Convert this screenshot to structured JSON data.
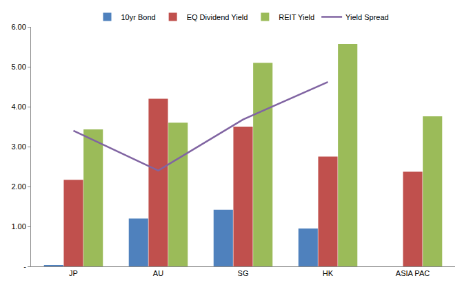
{
  "chart_data": {
    "type": "bar",
    "categories": [
      "JP",
      "AU",
      "SG",
      "HK",
      "ASIA PAC"
    ],
    "series": [
      {
        "name": "10yr Bond",
        "color": "#4F81BD",
        "values": [
          0.03,
          1.2,
          1.42,
          0.95,
          null
        ]
      },
      {
        "name": "EQ Dividend Yield",
        "color": "#C0504D",
        "values": [
          2.17,
          4.2,
          3.5,
          2.75,
          2.37
        ]
      },
      {
        "name": "REIT Yield",
        "color": "#9BBB59",
        "values": [
          3.43,
          3.6,
          5.1,
          5.57,
          3.76
        ]
      },
      {
        "name": "Yield Spread",
        "color": "#8064A2",
        "type": "line",
        "values": [
          3.4,
          2.4,
          3.68,
          4.62,
          null
        ]
      }
    ],
    "ylim": [
      0,
      6
    ],
    "yticks": [
      {
        "value": 0,
        "label": "-"
      },
      {
        "value": 1,
        "label": "1.00"
      },
      {
        "value": 2,
        "label": "2.00"
      },
      {
        "value": 3,
        "label": "3.00"
      },
      {
        "value": 4,
        "label": "4.00"
      },
      {
        "value": 5,
        "label": "5.00"
      },
      {
        "value": 6,
        "label": "6.00"
      }
    ],
    "grid": false,
    "legend": "top"
  }
}
